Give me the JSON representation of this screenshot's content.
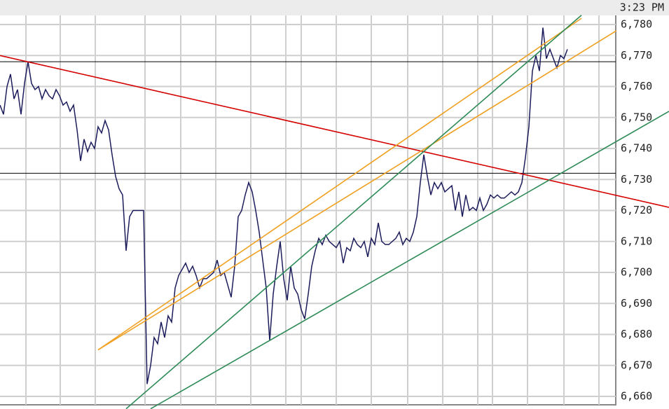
{
  "chart_data": {
    "type": "line",
    "time_label": "3:23 PM",
    "ylim": [
      6660,
      6780
    ],
    "yticks": [
      {
        "value": 6660,
        "label": "6,660"
      },
      {
        "value": 6670,
        "label": "6,670"
      },
      {
        "value": 6680,
        "label": "6,680"
      },
      {
        "value": 6690,
        "label": "6,690"
      },
      {
        "value": 6700,
        "label": "6,700"
      },
      {
        "value": 6710,
        "label": "6,710"
      },
      {
        "value": 6720,
        "label": "6,720"
      },
      {
        "value": 6730,
        "label": "6,730"
      },
      {
        "value": 6740,
        "label": "6,740"
      },
      {
        "value": 6750,
        "label": "6,750"
      },
      {
        "value": 6760,
        "label": "6,760"
      },
      {
        "value": 6770,
        "label": "6,770"
      },
      {
        "value": 6780,
        "label": "6,780"
      }
    ],
    "grid": true,
    "series": [
      {
        "color": "#1c1c5c",
        "values": [
          6754,
          6751,
          6760,
          6764,
          6756,
          6759,
          6751,
          6761,
          6768,
          6761,
          6759,
          6760,
          6756,
          6759,
          6757,
          6756,
          6759,
          6757,
          6754,
          6755,
          6752,
          6754,
          6746,
          6736,
          6743,
          6739,
          6742,
          6740,
          6747,
          6745,
          6749,
          6746,
          6738,
          6731,
          6727,
          6725,
          6707,
          6718,
          6720,
          6720,
          6720,
          6720,
          6664,
          6670,
          6679,
          6677,
          6684,
          6679,
          6686,
          6684,
          6695,
          6699,
          6701,
          6703,
          6700,
          6702,
          6699,
          6695,
          6698,
          6698,
          6699,
          6700,
          6704,
          6699,
          6700,
          6696,
          6692,
          6702,
          6718,
          6720,
          6725,
          6729,
          6726,
          6720,
          6713,
          6704,
          6695,
          6678,
          6693,
          6702,
          6710,
          6698,
          6691,
          6702,
          6695,
          6693,
          6688,
          6685,
          6693,
          6702,
          6707,
          6711,
          6709,
          6712,
          6710,
          6709,
          6708,
          6710,
          6703,
          6708,
          6707,
          6711,
          6709,
          6708,
          6710,
          6705,
          6711,
          6709,
          6716,
          6710,
          6709,
          6709,
          6710,
          6711,
          6713,
          6709,
          6711,
          6710,
          6713,
          6718,
          6729,
          6738,
          6731,
          6725,
          6729,
          6727,
          6729,
          6726,
          6727,
          6728,
          6720,
          6726,
          6718,
          6725,
          6720,
          6721,
          6720,
          6724,
          6720,
          6722,
          6725,
          6724,
          6725,
          6724,
          6724,
          6725,
          6726,
          6725,
          6726,
          6729,
          6737,
          6747,
          6765,
          6770,
          6765,
          6779,
          6769,
          6772,
          6769,
          6766,
          6770,
          6769,
          6772
        ]
      }
    ],
    "lines": [
      {
        "color": "#d40000",
        "x": [
          0,
          191
        ],
        "values": [
          6770,
          6721
        ]
      },
      {
        "color": "#f0a020",
        "x": [
          28,
          166
        ],
        "values": [
          6675,
          6782
        ]
      },
      {
        "color": "#f0a020",
        "x": [
          28,
          176
        ],
        "values": [
          6675,
          6778
        ]
      },
      {
        "color": "#2e8b57",
        "x": [
          36,
          166
        ],
        "values": [
          6656,
          6783
        ]
      },
      {
        "color": "#2e8b57",
        "x": [
          43,
          191
        ],
        "values": [
          6656,
          6752
        ]
      }
    ],
    "hlines": [
      {
        "color": "#000000",
        "value": 6768
      },
      {
        "color": "#000000",
        "value": 6732
      }
    ]
  }
}
